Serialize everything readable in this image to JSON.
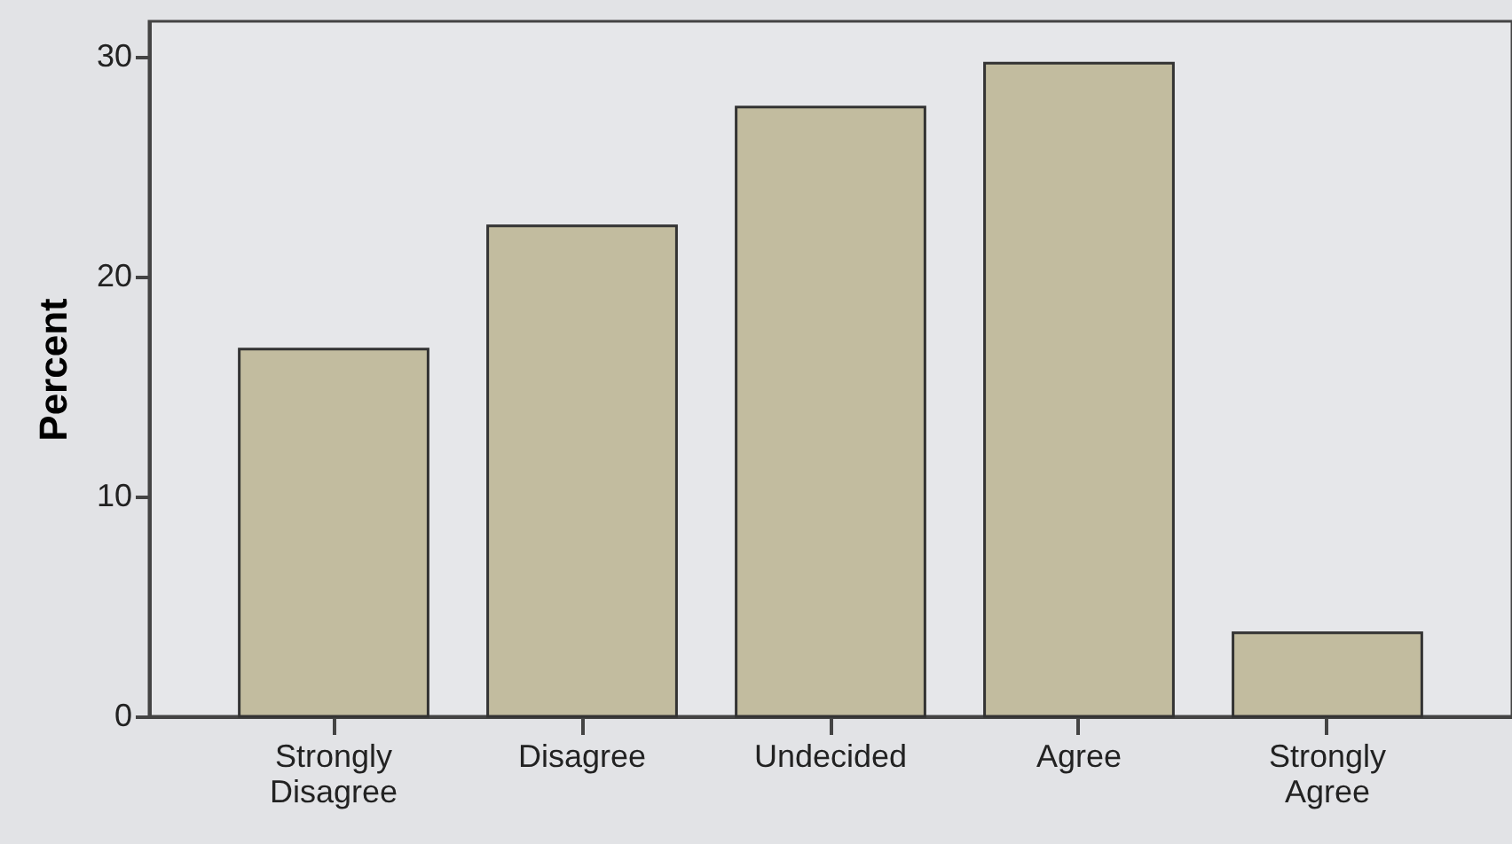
{
  "chart_data": {
    "type": "bar",
    "ylabel": "Percent",
    "categories": [
      "Strongly Disagree",
      "Disagree",
      "Undecided",
      "Agree",
      "Strongly Agree"
    ],
    "values": [
      16.7,
      22.3,
      27.7,
      29.7,
      3.8
    ],
    "color": "#c2bc9f",
    "ylim": [
      0,
      31.6
    ],
    "yticks": [
      0,
      10,
      20,
      30
    ],
    "grid": false
  }
}
